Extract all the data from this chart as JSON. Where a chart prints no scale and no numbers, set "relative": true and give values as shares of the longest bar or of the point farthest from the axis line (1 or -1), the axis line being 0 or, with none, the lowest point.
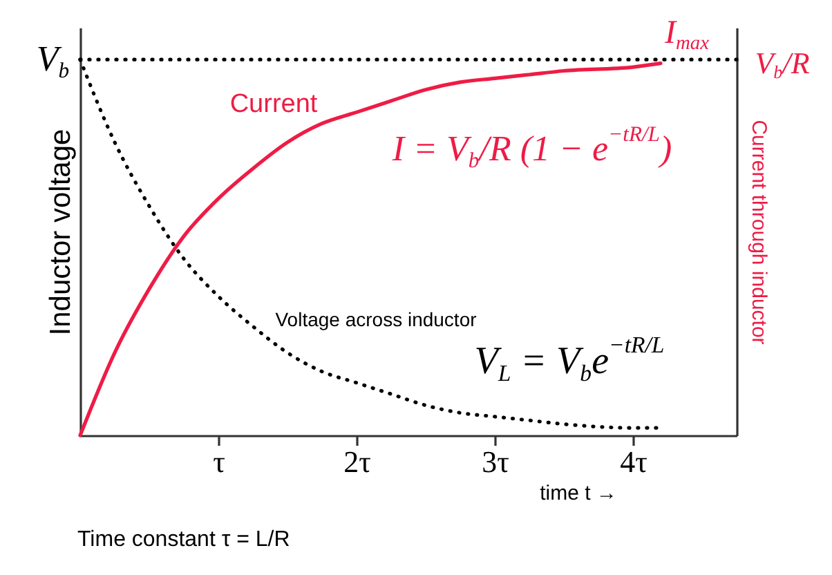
{
  "chart_data": {
    "type": "line",
    "relative": true,
    "xlabel": "time t →",
    "ylabel": "Inductor voltage",
    "y2label": "Current through inductor",
    "x": [
      0,
      0.25,
      0.5,
      0.75,
      1,
      1.25,
      1.5,
      1.75,
      2,
      2.25,
      2.5,
      2.75,
      3,
      3.25,
      3.5,
      4,
      4.2
    ],
    "xlim": [
      0,
      4.75
    ],
    "xticks": [
      {
        "value": 1,
        "label": "τ"
      },
      {
        "value": 2,
        "label": "2τ"
      },
      {
        "value": 3,
        "label": "3τ"
      },
      {
        "value": 4,
        "label": "4τ"
      }
    ],
    "series": [
      {
        "name": "Voltage across inductor",
        "color": "#000000",
        "line_style": "dotted",
        "values": [
          1,
          0.78,
          0.61,
          0.47,
          0.37,
          0.29,
          0.22,
          0.17,
          0.14,
          0.11,
          0.08,
          0.06,
          0.05,
          0.04,
          0.03,
          0.02,
          0.02
        ]
      },
      {
        "name": "Current",
        "color": "#ee1c46",
        "axis": "y2",
        "line_style": "solid",
        "values": [
          0,
          0.22,
          0.39,
          0.53,
          0.63,
          0.71,
          0.78,
          0.83,
          0.86,
          0.89,
          0.92,
          0.94,
          0.95,
          0.96,
          0.97,
          0.98,
          0.99
        ]
      }
    ],
    "ref_lines": [
      {
        "axis": "y2",
        "value": 1,
        "label": "I$_{max}$",
        "color": "#000000",
        "line_style": "dotted"
      }
    ],
    "annotations": [
      {
        "text": "V$_{b}$",
        "x": 0,
        "y": 1
      },
      "V$_{b}$/R",
      "I = V$_{b}$/R (1 − e$^{−tR/L}$)",
      "V$_{L}$ = V$_{b}$e$^{−tR/L}$",
      "Time constant τ = L/R"
    ],
    "grid": false,
    "legend": false,
    "marker": "none"
  }
}
